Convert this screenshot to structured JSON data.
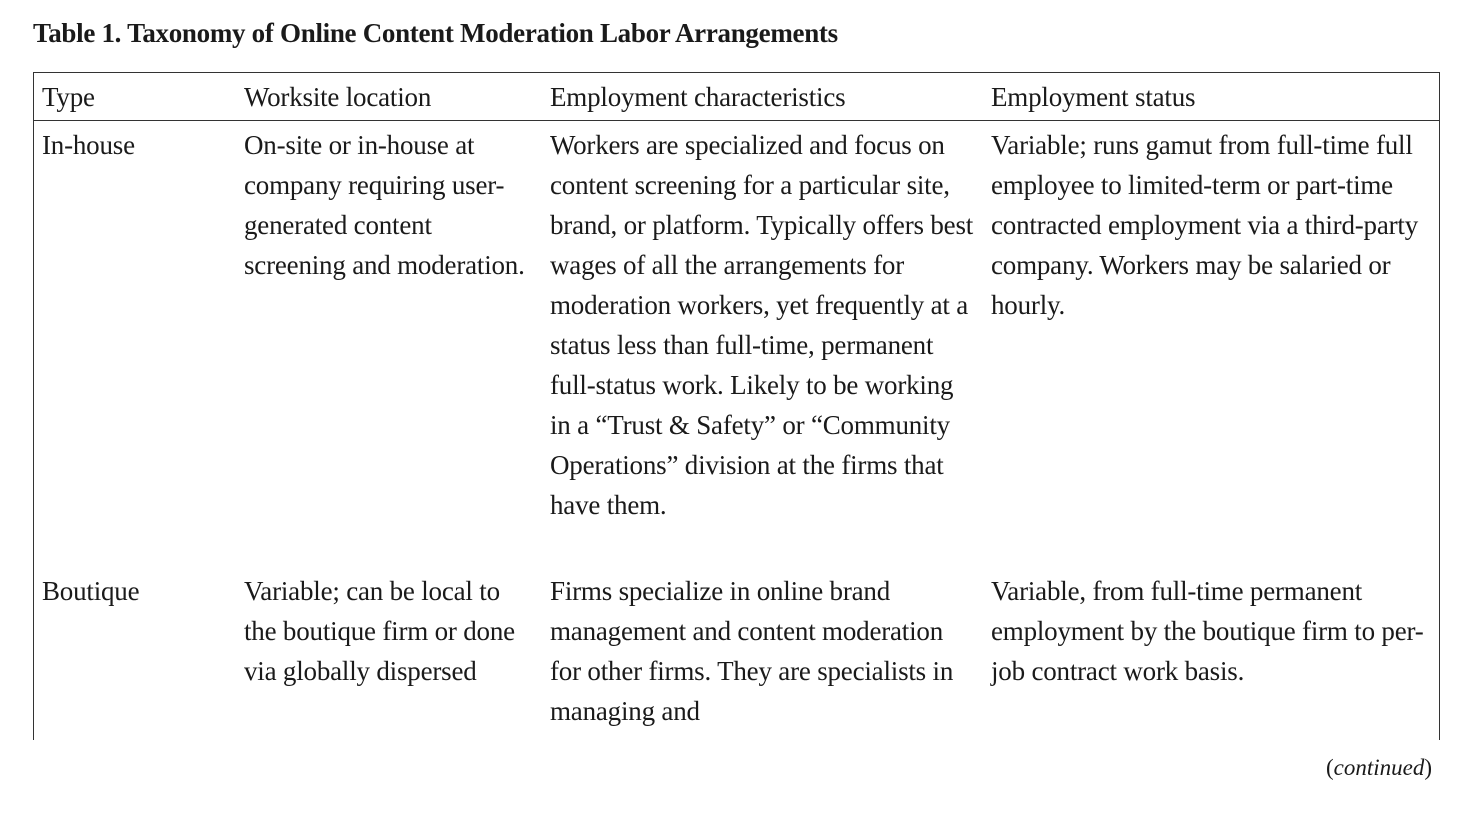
{
  "caption": "Table 1. Taxonomy of Online Content Moderation Labor Arrangements",
  "table": {
    "headers": [
      "Type",
      "Worksite location",
      "Employment characteristics",
      "Employment status"
    ],
    "rows": [
      {
        "type": "In-house",
        "worksite": "On-site or in-house at company requiring user-generated content screening and moderation.",
        "characteristics": "Workers are specialized and focus on content screening for a particular site, brand, or platform. Typically offers best wages of all the arrangements for moderation workers, yet frequently at a status less than full-time, permanent full-status work. Likely to be working in a “Trust & Safety” or “Community Operations” division at the firms that have them.",
        "status": "Variable; runs gamut from full-time full employee to limited-term or part-time contracted employment via a third-party company. Workers may be salaried or hourly."
      },
      {
        "type": "Boutique",
        "worksite": "Variable; can be local to the boutique firm or done via globally dispersed",
        "characteristics": "Firms specialize in online brand management and content moderation for other firms. They are specialists in managing and",
        "status": "Variable, from full-time permanent employment by the boutique firm to per-job contract work basis."
      }
    ]
  },
  "footer": {
    "continued_open": "(",
    "continued_label": "continued",
    "continued_close": ")"
  }
}
